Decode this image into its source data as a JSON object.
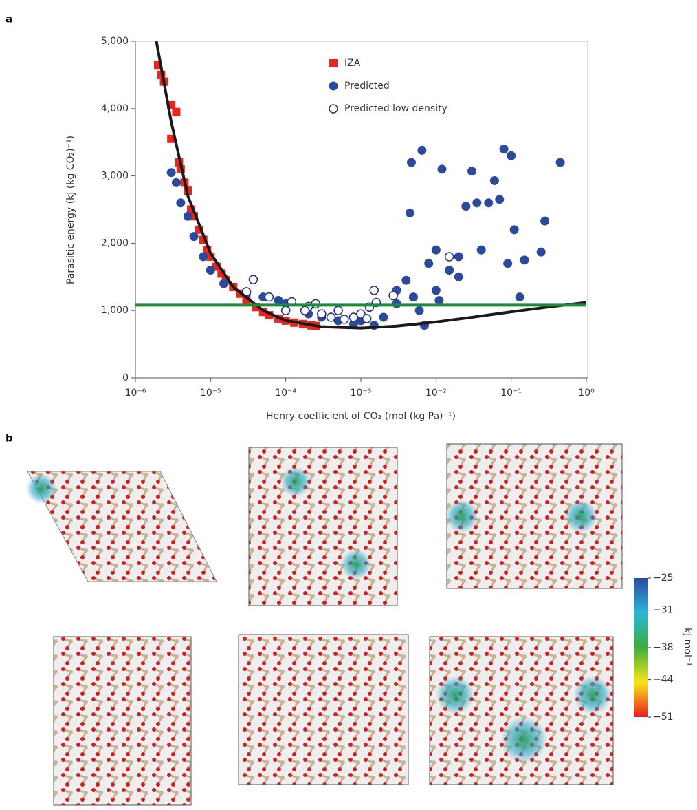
{
  "panel_labels": [
    "a",
    "b"
  ],
  "chart_data": {
    "type": "scatter",
    "xscale": "log",
    "grid": false,
    "legend": "top-center",
    "xlabel": "Henry coefficient of CO₂ (mol (kg Pa)⁻¹)",
    "ylabel": "Parasitic energy (kJ (kg CO₂)⁻¹)",
    "xlim": [
      1e-06,
      1
    ],
    "ylim": [
      0,
      5000
    ],
    "xticks": [
      {
        "value": 1e-06,
        "label": "10⁻⁶"
      },
      {
        "value": 1e-05,
        "label": "10⁻⁵"
      },
      {
        "value": 0.0001,
        "label": "10⁻⁴"
      },
      {
        "value": 0.001,
        "label": "10⁻³"
      },
      {
        "value": 0.01,
        "label": "10⁻²"
      },
      {
        "value": 0.1,
        "label": "10⁻¹"
      },
      {
        "value": 1,
        "label": "10⁰"
      }
    ],
    "yticks": [
      0,
      {
        "value": 1000,
        "label": "1,000"
      },
      {
        "value": 2000,
        "label": "2,000"
      },
      {
        "value": 3000,
        "label": "3,000"
      },
      {
        "value": 4000,
        "label": "4,000"
      },
      {
        "value": 5000,
        "label": "5,000"
      }
    ],
    "series": [
      {
        "name": "IZA",
        "color": "#e8251e",
        "marker": "square",
        "x": [
          2e-06,
          2.2e-06,
          2.4e-06,
          3e-06,
          3.5e-06,
          3e-06,
          3.8e-06,
          4e-06,
          4.5e-06,
          5e-06,
          5.5e-06,
          6e-06,
          7e-06,
          8e-06,
          9e-06,
          1e-05,
          1.2e-05,
          1.4e-05,
          1.6e-05,
          2e-05,
          2.5e-05,
          3e-05,
          4e-05,
          5e-05,
          6e-05,
          8e-05,
          0.0001,
          0.00013,
          0.00017,
          0.00022,
          0.00025
        ],
        "values": [
          4650,
          4500,
          4400,
          4050,
          3950,
          3550,
          3200,
          3100,
          2900,
          2780,
          2500,
          2400,
          2200,
          2050,
          1900,
          1800,
          1650,
          1550,
          1450,
          1350,
          1250,
          1150,
          1050,
          980,
          930,
          880,
          850,
          820,
          800,
          780,
          770
        ]
      },
      {
        "name": "Predicted",
        "color": "#2b4a9c",
        "marker": "circle",
        "x": [
          3e-06,
          3.5e-06,
          4e-06,
          5e-06,
          6e-06,
          8e-06,
          1e-05,
          1.5e-05,
          3e-05,
          5e-05,
          8e-05,
          0.0001,
          0.0002,
          0.0003,
          0.0005,
          0.0008,
          0.001,
          0.0015,
          0.002,
          0.003,
          0.004,
          0.0045,
          0.0047,
          0.0065,
          0.007,
          0.008,
          0.01,
          0.012,
          0.015,
          0.02,
          0.025,
          0.03,
          0.035,
          0.04,
          0.05,
          0.06,
          0.07,
          0.08,
          0.09,
          0.1,
          0.11,
          0.15,
          0.13,
          0.25,
          0.28,
          0.45,
          0.003,
          0.005,
          0.01,
          0.02,
          0.006,
          0.011
        ],
        "values": [
          3050,
          2900,
          2600,
          2400,
          2100,
          1800,
          1600,
          1400,
          1250,
          1200,
          1150,
          1100,
          950,
          900,
          850,
          800,
          850,
          780,
          900,
          1300,
          1450,
          2450,
          3200,
          3380,
          780,
          1700,
          1900,
          3100,
          1600,
          1800,
          2550,
          3070,
          2600,
          1900,
          2600,
          2930,
          2650,
          3400,
          1700,
          3300,
          2200,
          1750,
          1200,
          1870,
          2330,
          3200,
          1100,
          1200,
          1300,
          1500,
          1000,
          1150
        ]
      },
      {
        "name": "Predicted low density",
        "color": "#1f2f80",
        "marker": "open-circle",
        "x": [
          3.7e-05,
          3e-05,
          6e-05,
          0.00012,
          0.0002,
          0.00018,
          0.0003,
          0.0004,
          0.0006,
          0.0008,
          0.001,
          0.0012,
          0.0015,
          0.0013,
          0.0016,
          0.0001,
          0.00025,
          0.0027,
          0.015,
          0.0005
        ],
        "values": [
          1460,
          1280,
          1200,
          1130,
          1060,
          1000,
          950,
          900,
          870,
          900,
          950,
          880,
          1300,
          1050,
          1120,
          1000,
          1100,
          1220,
          1800,
          1000
        ]
      },
      {
        "color": "#1a1a1a",
        "marker": "line",
        "x": [
          1.9e-06,
          3e-06,
          5e-06,
          1e-05,
          2e-05,
          5e-05,
          0.0001,
          0.0003,
          0.001,
          0.003,
          0.01,
          0.03,
          0.1,
          0.3,
          1
        ],
        "values": [
          5000,
          3800,
          2700,
          1850,
          1350,
          1000,
          850,
          760,
          740,
          770,
          830,
          900,
          980,
          1050,
          1120
        ]
      },
      {
        "color": "#1f8a3c",
        "marker": "line",
        "x": [
          1e-06,
          1
        ],
        "values": [
          1080,
          1080
        ]
      }
    ]
  },
  "colorbar": {
    "label": "kJ mol⁻¹",
    "lim": [
      -51,
      -25
    ],
    "ticks": [
      {
        "value": -25,
        "label": "−25"
      },
      {
        "value": -31,
        "label": "−31"
      },
      {
        "value": -38,
        "label": "−38"
      },
      {
        "value": -44,
        "label": "−44"
      },
      {
        "value": -51,
        "label": "−51"
      }
    ]
  }
}
